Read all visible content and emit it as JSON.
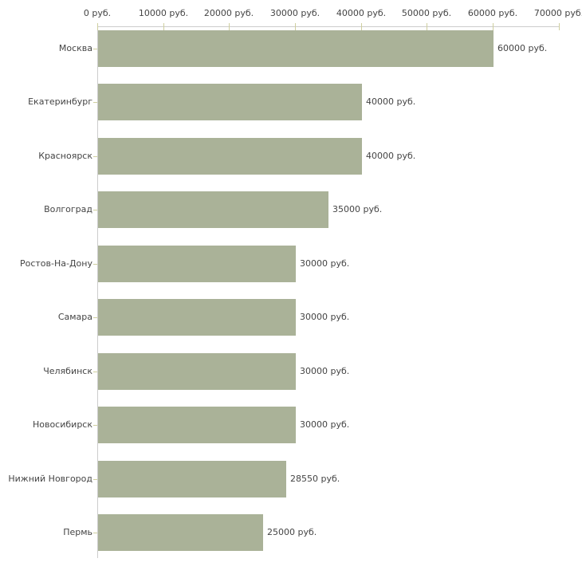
{
  "chart_data": {
    "type": "bar",
    "orientation": "horizontal",
    "title": "",
    "xlabel": "",
    "ylabel": "",
    "categories": [
      "Москва",
      "Екатеринбург",
      "Красноярск",
      "Волгоград",
      "Ростов-На-Дону",
      "Самара",
      "Челябинск",
      "Новосибирск",
      "Нижний Новгород",
      "Пермь"
    ],
    "values": [
      60000,
      40000,
      40000,
      35000,
      30000,
      30000,
      30000,
      30000,
      28550,
      25000
    ],
    "value_labels": [
      "60000 руб.",
      "40000 руб.",
      "40000 руб.",
      "35000 руб.",
      "30000 руб.",
      "30000 руб.",
      "30000 руб.",
      "30000 руб.",
      "28550 руб.",
      "25000 руб."
    ],
    "x_ticks": [
      0,
      10000,
      20000,
      30000,
      40000,
      50000,
      60000,
      70000
    ],
    "x_tick_labels": [
      "0 руб.",
      "10000 руб.",
      "20000 руб.",
      "30000 руб.",
      "40000 руб.",
      "50000 руб.",
      "60000 руб.",
      "70000 руб."
    ],
    "xlim": [
      0,
      70000
    ],
    "grid": "off",
    "legend": "none",
    "colors": {
      "bar": "#aab298",
      "axis": "#cccccc",
      "tick": "#cfcf9f",
      "text": "#444444",
      "background": "#ffffff"
    }
  }
}
